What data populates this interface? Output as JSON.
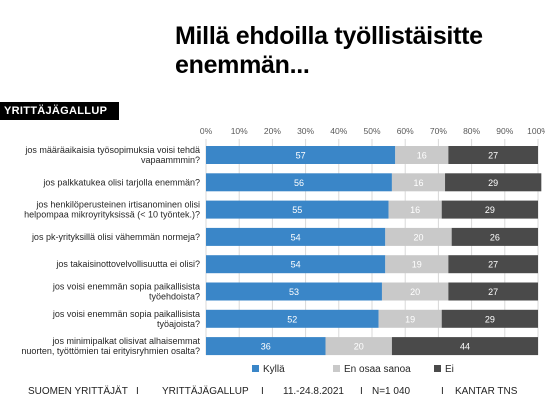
{
  "title": "Millä ehdoilla työllistäisitte enemmän...",
  "badge": "YRITTÄJÄGALLUP",
  "chart_data": {
    "type": "bar",
    "orientation": "horizontal",
    "stacked": true,
    "title": "Millä ehdoilla työllistäisitte enemmän...",
    "xlim": [
      0,
      100
    ],
    "x_ticks": [
      "0%",
      "10%",
      "20%",
      "30%",
      "40%",
      "50%",
      "60%",
      "70%",
      "80%",
      "90%",
      "100%"
    ],
    "categories": [
      [
        "jos määräaikaisia työsopimuksia voisi tehdä",
        "vapaammmin?"
      ],
      [
        "jos palkkatukea olisi tarjolla enemmän?"
      ],
      [
        "jos henkilöperusteinen irtisanominen olisi",
        "helpompaa mikroyrityksissä (< 10 työntek.)?"
      ],
      [
        "jos pk-yrityksillä olisi vähemmän normeja?"
      ],
      [
        "jos takaisinottovelvollisuutta ei olisi?"
      ],
      [
        "jos voisi enemmän sopia paikallisista",
        "työehdoista?"
      ],
      [
        "jos voisi enemmän sopia paikallisista",
        "työajoista?"
      ],
      [
        "jos minimipalkat olisivat alhaisemmat",
        "nuorten, työttömien tai erityisryhmien osalta?"
      ]
    ],
    "series": [
      {
        "name": "Kyllä",
        "color": "#3a86c8",
        "values": [
          57,
          56,
          55,
          54,
          54,
          53,
          52,
          36
        ]
      },
      {
        "name": "En osaa sanoa",
        "color": "#c9c9c9",
        "values": [
          16,
          16,
          16,
          20,
          19,
          20,
          19,
          20
        ]
      },
      {
        "name": "Ei",
        "color": "#4a4a4a",
        "values": [
          27,
          29,
          29,
          26,
          27,
          27,
          29,
          44
        ]
      }
    ],
    "grid": true,
    "legend": "bottom"
  },
  "footer": {
    "org": "SUOMEN YRITTÄJÄT",
    "sep": "I",
    "survey": "YRITTÄJÄGALLUP",
    "dates": "11.-24.8.2021",
    "n": "N=1 040",
    "source": "KANTAR TNS"
  }
}
